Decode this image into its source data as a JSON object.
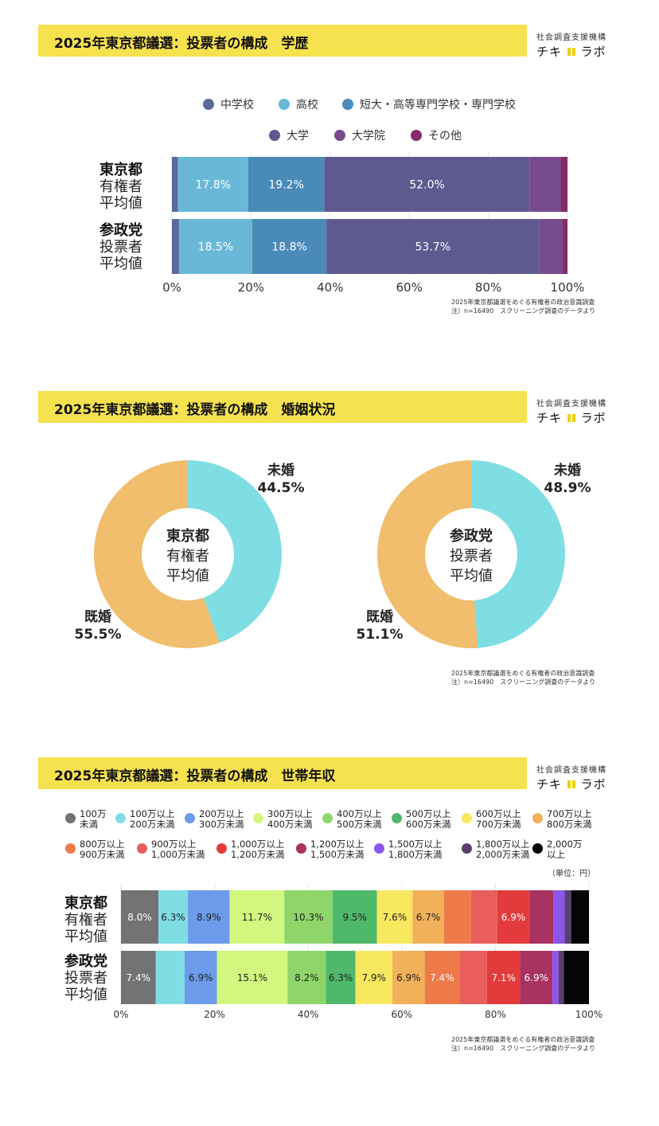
{
  "brand": {
    "top": "社会調査支援機構",
    "left": "チキ",
    "right": "ラボ"
  },
  "colors": {
    "title_bar": "#f6e14f"
  },
  "note": {
    "line1": "2025年東京都議選をめぐる有権者の政治意識調査",
    "line2": "注）n=16490　スクリーニング調査のデータより"
  },
  "education": {
    "title": "2025年東京都議選：投票者の構成　学歴",
    "legend": [
      {
        "label": "中学校",
        "color": "#5a6a9a"
      },
      {
        "label": "高校",
        "color": "#6ab8d8"
      },
      {
        "label": "短大・高等専門学校・専門学校",
        "color": "#4a8ab8"
      },
      {
        "label": "大学",
        "color": "#5e5a90"
      },
      {
        "label": "大学院",
        "color": "#784a8e"
      },
      {
        "label": "その他",
        "color": "#862a6a"
      }
    ],
    "rows": [
      {
        "label_b": "東京都",
        "label_1": "有権者",
        "label_2": "平均値"
      },
      {
        "label_b": "参政党",
        "label_1": "投票者",
        "label_2": "平均値"
      }
    ]
  },
  "marriage": {
    "title": "2025年東京都議選：投票者の構成　婚姻状況",
    "left": {
      "center_b": "東京都",
      "center_1": "有権者",
      "center_2": "平均値",
      "unmarried_label": "未婚",
      "unmarried_value": "44.5%",
      "married_label": "既婚",
      "married_value": "55.5%"
    },
    "right": {
      "center_b": "参政党",
      "center_1": "投票者",
      "center_2": "平均値",
      "unmarried_label": "未婚",
      "unmarried_value": "48.9%",
      "married_label": "既婚",
      "married_value": "51.1%"
    },
    "colors": {
      "unmarried": "#7fdde4",
      "married": "#f0be6c"
    }
  },
  "income": {
    "title": "2025年東京都議選：投票者の構成　世帯年収",
    "unit": "（単位：円）",
    "legend": [
      {
        "label": "100万\n未満",
        "color": "#737373"
      },
      {
        "label": "100万以上\n200万未満",
        "color": "#7fdde4"
      },
      {
        "label": "200万以上\n300万未満",
        "color": "#6b9bea"
      },
      {
        "label": "300万以上\n400万未満",
        "color": "#d2f77f"
      },
      {
        "label": "400万以上\n500万未満",
        "color": "#8fd66a"
      },
      {
        "label": "500万以上\n600万未満",
        "color": "#4fb86a"
      },
      {
        "label": "600万以上\n700万未満",
        "color": "#f7e860"
      },
      {
        "label": "700万以上\n800万未満",
        "color": "#f0b15a"
      },
      {
        "label": "800万以上\n900万未満",
        "color": "#ee7a4a"
      },
      {
        "label": "900万以上\n1,000万未満",
        "color": "#ea5e5e"
      },
      {
        "label": "1,000万以上\n1,200万未満",
        "color": "#e33b3b"
      },
      {
        "label": "1,200万以上\n1,500万未満",
        "color": "#a83260"
      },
      {
        "label": "1,500万以上\n1,800万未満",
        "color": "#8b55ee"
      },
      {
        "label": "1,800万以上\n2,000万未満",
        "color": "#5a3e70"
      },
      {
        "label": "2,000万\n以上",
        "color": "#050505"
      }
    ],
    "rows": [
      {
        "label_b": "東京都",
        "label_1": "有権者",
        "label_2": "平均値"
      },
      {
        "label_b": "参政党",
        "label_1": "投票者",
        "label_2": "平均値"
      }
    ]
  },
  "chart_data": [
    {
      "type": "bar",
      "orientation": "horizontal-stacked",
      "title": "2025年東京都議選：投票者の構成　学歴",
      "categories": [
        "東京都 有権者 平均値",
        "参政党 投票者 平均値"
      ],
      "xlim": [
        0,
        100
      ],
      "xticks": [
        "0%",
        "20%",
        "40%",
        "60%",
        "80%",
        "100%"
      ],
      "legend_position": "top",
      "series": [
        {
          "name": "中学校",
          "values": [
            1.5,
            1.8
          ],
          "color": "#5a6a9a",
          "labels": [
            "",
            ""
          ]
        },
        {
          "name": "高校",
          "values": [
            17.8,
            18.5
          ],
          "color": "#6ab8d8",
          "labels": [
            "17.8%",
            "18.5%"
          ]
        },
        {
          "name": "短大・高等専門学校・専門学校",
          "values": [
            19.2,
            18.8
          ],
          "color": "#4a8ab8",
          "labels": [
            "19.2%",
            "18.8%"
          ]
        },
        {
          "name": "大学",
          "values": [
            52.0,
            53.7
          ],
          "color": "#5e5a90",
          "labels": [
            "52.0%",
            "53.7%"
          ]
        },
        {
          "name": "大学院",
          "values": [
            7.8,
            6.0
          ],
          "color": "#784a8e",
          "labels": [
            "",
            ""
          ]
        },
        {
          "name": "その他",
          "values": [
            1.7,
            1.2
          ],
          "color": "#862a6a",
          "labels": [
            "",
            ""
          ]
        }
      ]
    },
    {
      "type": "pie",
      "title": "東京都 有権者 平均値",
      "categories": [
        "未婚",
        "既婚"
      ],
      "values": [
        44.5,
        55.5
      ]
    },
    {
      "type": "pie",
      "title": "参政党 投票者 平均値",
      "categories": [
        "未婚",
        "既婚"
      ],
      "values": [
        48.9,
        51.1
      ]
    },
    {
      "type": "bar",
      "orientation": "horizontal-stacked",
      "title": "2025年東京都議選：投票者の構成　世帯年収",
      "categories": [
        "東京都 有権者 平均値",
        "参政党 投票者 平均値"
      ],
      "xlim": [
        0,
        100
      ],
      "xticks": [
        "0%",
        "20%",
        "40%",
        "60%",
        "80%",
        "100%"
      ],
      "series": [
        {
          "name": "100万未満",
          "values": [
            8.0,
            7.4
          ],
          "labels": [
            "8.0%",
            "7.4%"
          ]
        },
        {
          "name": "100万以上200万未満",
          "values": [
            6.3,
            6.2
          ],
          "labels": [
            "6.3%",
            ""
          ]
        },
        {
          "name": "200万以上300万未満",
          "values": [
            8.9,
            6.9
          ],
          "labels": [
            "8.9%",
            "6.9%"
          ]
        },
        {
          "name": "300万以上400万未満",
          "values": [
            11.7,
            15.1
          ],
          "labels": [
            "11.7%",
            "15.1%"
          ]
        },
        {
          "name": "400万以上500万未満",
          "values": [
            10.3,
            8.2
          ],
          "labels": [
            "10.3%",
            "8.2%"
          ]
        },
        {
          "name": "500万以上600万未満",
          "values": [
            9.5,
            6.3
          ],
          "labels": [
            "9.5%",
            "6.3%"
          ]
        },
        {
          "name": "600万以上700万未満",
          "values": [
            7.6,
            7.9
          ],
          "labels": [
            "7.6%",
            "7.9%"
          ]
        },
        {
          "name": "700万以上800万未満",
          "values": [
            6.7,
            6.9
          ],
          "labels": [
            "6.7%",
            "6.9%"
          ]
        },
        {
          "name": "800万以上900万未満",
          "values": [
            5.8,
            7.4
          ],
          "labels": [
            "",
            "7.4%"
          ]
        },
        {
          "name": "900万以上1,000万未満",
          "values": [
            5.6,
            5.9
          ],
          "labels": [
            "",
            ""
          ]
        },
        {
          "name": "1,000万以上1,200万未満",
          "values": [
            6.9,
            7.1
          ],
          "labels": [
            "6.9%",
            "7.1%"
          ]
        },
        {
          "name": "1,200万以上1,500万未満",
          "values": [
            5.1,
            6.9
          ],
          "labels": [
            "",
            "6.9%"
          ]
        },
        {
          "name": "1,500万以上1,800万未満",
          "values": [
            2.4,
            1.3
          ],
          "labels": [
            "",
            ""
          ]
        },
        {
          "name": "1,800万以上2,000万未満",
          "values": [
            1.4,
            1.1
          ],
          "labels": [
            "",
            ""
          ]
        },
        {
          "name": "2,000万以上",
          "values": [
            3.8,
            5.4
          ],
          "labels": [
            "",
            ""
          ]
        }
      ]
    }
  ]
}
